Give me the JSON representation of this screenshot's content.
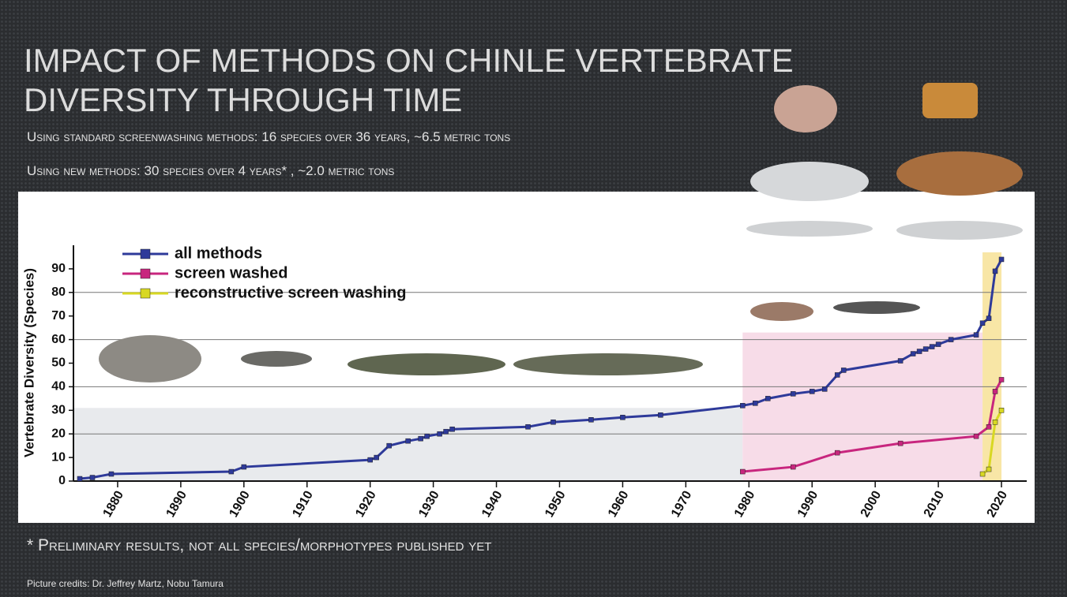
{
  "slide": {
    "title": "IMPACT OF METHODS ON CHINLE VERTEBRATE DIVERSITY THROUGH TIME",
    "subtitle_lines": [
      "Using standard screenwashing methods: 16 species over 36 years, ~6.5 metric tons",
      "Using new methods: 30 species over 4 years* , ~2.0 metric tons"
    ],
    "footnote": "* Preliminary results, not all species/morphotypes published yet",
    "credits": "Picture credits: Dr. Jeffrey Martz, Nobu Tamura"
  },
  "chart_data": {
    "type": "line",
    "y_label": "Vertebrate Diversity (Species)",
    "xlim": [
      1873,
      2024
    ],
    "xticks": [
      1880,
      1890,
      1900,
      1910,
      1920,
      1930,
      1940,
      1950,
      1960,
      1970,
      1980,
      1990,
      2000,
      2010,
      2020
    ],
    "ylim": [
      0,
      100
    ],
    "yticks": [
      0,
      10,
      20,
      30,
      40,
      50,
      60,
      70,
      80,
      90
    ],
    "grid_lines": [
      20,
      40,
      60,
      80
    ],
    "regions": [
      {
        "x0": 1873,
        "x1": 1979,
        "y1": 31,
        "color": "#e8eaed"
      },
      {
        "x0": 1979,
        "x1": 2017,
        "y1": 63,
        "color": "#f7dce8"
      },
      {
        "x0": 2017,
        "x1": 2020,
        "y1": 97,
        "color": "#f8e6a6"
      }
    ],
    "legend": "top-left",
    "series": [
      {
        "name": "all methods",
        "color": "#2e3a9a",
        "x": [
          1874,
          1876,
          1879,
          1898,
          1900,
          1920,
          1921,
          1923,
          1926,
          1928,
          1929,
          1931,
          1932,
          1933,
          1945,
          1949,
          1955,
          1960,
          1966,
          1979,
          1981,
          1983,
          1987,
          1990,
          1992,
          1994,
          1995,
          2004,
          2006,
          2007,
          2008,
          2009,
          2010,
          2012,
          2016,
          2017,
          2018,
          2019,
          2020
        ],
        "values": [
          1,
          1.5,
          3,
          4,
          6,
          9,
          10,
          15,
          17,
          18,
          19,
          20,
          21,
          22,
          23,
          25,
          26,
          27,
          28,
          32,
          33,
          35,
          37,
          38,
          39,
          45,
          47,
          51,
          54,
          55,
          56,
          57,
          58,
          60,
          62,
          67,
          69,
          89,
          94
        ]
      },
      {
        "name": "screen washed",
        "color": "#c8267e",
        "x": [
          1979,
          1987,
          1994,
          2004,
          2016,
          2018,
          2019,
          2020
        ],
        "values": [
          4,
          6,
          12,
          16,
          19,
          23,
          38,
          43
        ]
      },
      {
        "name": "reconstructive screen washing",
        "color": "#d8d822",
        "x": [
          2017,
          2018,
          2019,
          2020
        ],
        "values": [
          3,
          5,
          25,
          30
        ]
      }
    ]
  }
}
